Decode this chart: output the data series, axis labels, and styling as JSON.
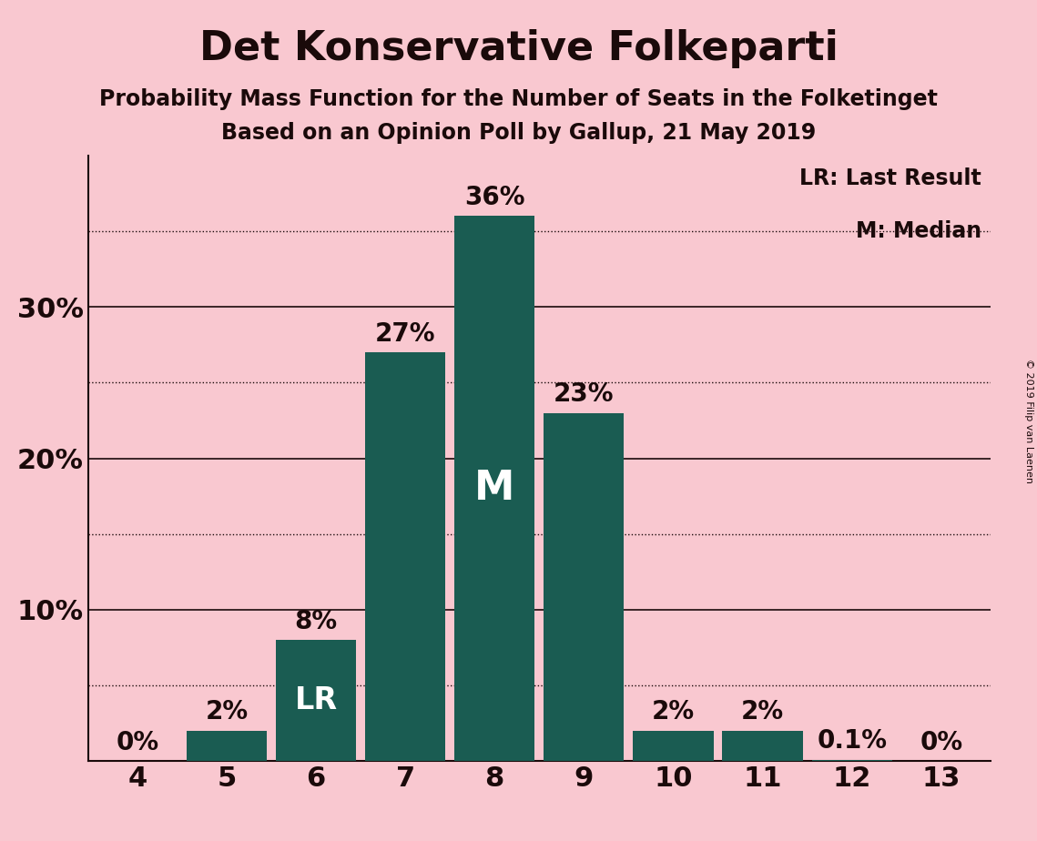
{
  "title": "Det Konservative Folkeparti",
  "subtitle1": "Probability Mass Function for the Number of Seats in the Folketinget",
  "subtitle2": "Based on an Opinion Poll by Gallup, 21 May 2019",
  "copyright": "© 2019 Filip van Laenen",
  "seats": [
    4,
    5,
    6,
    7,
    8,
    9,
    10,
    11,
    12,
    13
  ],
  "probabilities": [
    0.0,
    2.0,
    8.0,
    27.0,
    36.0,
    23.0,
    2.0,
    2.0,
    0.1,
    0.0
  ],
  "bar_color": "#1a5c52",
  "background_color": "#f9c8d0",
  "text_color": "#1a0a0a",
  "white_color": "#ffffff",
  "last_result_seat": 6,
  "median_seat": 8,
  "ylim": [
    0,
    40
  ],
  "solid_yticks": [
    10,
    20,
    30
  ],
  "dotted_yticks": [
    5,
    15,
    25,
    35
  ],
  "legend_text1": "LR: Last Result",
  "legend_text2": "M: Median",
  "title_fontsize": 32,
  "subtitle_fontsize": 17,
  "bar_label_fontsize": 20,
  "axis_label_fontsize": 22,
  "legend_fontsize": 17,
  "copyright_fontsize": 8,
  "lr_fontsize": 24,
  "m_fontsize": 32,
  "bar_width": 0.9
}
